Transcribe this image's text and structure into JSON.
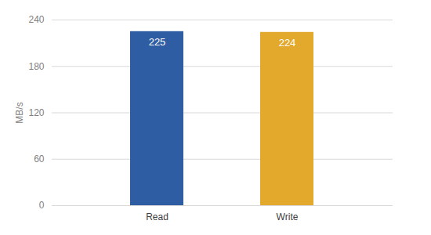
{
  "chart_data": {
    "type": "bar",
    "categories": [
      "Read",
      "Write"
    ],
    "values": [
      225,
      224
    ],
    "colors": [
      "#2e5da3",
      "#e2a92c"
    ],
    "y_label": "MB/s",
    "ylim": [
      0,
      240
    ],
    "yticks": [
      0,
      60,
      120,
      180,
      240
    ],
    "grid": true,
    "data_labels": true
  }
}
